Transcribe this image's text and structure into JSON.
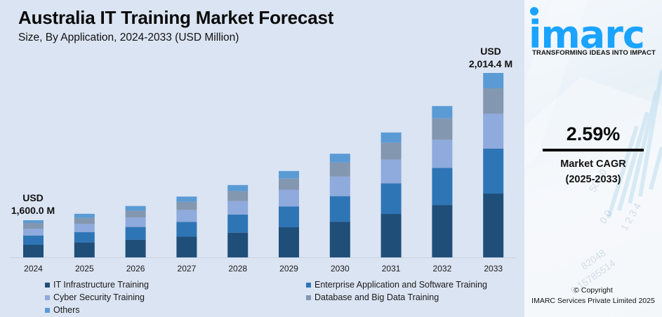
{
  "header": {
    "title": "Australia IT Training Market Forecast",
    "subtitle": "Size, By Application, 2024-2033 (USD Million)"
  },
  "annotations": {
    "start_currency": "USD",
    "start_value": "1,600.0 M",
    "end_currency": "USD",
    "end_value": "2,014.4 M"
  },
  "chart_data": {
    "type": "bar",
    "stacked": true,
    "title": "Australia IT Training Market Forecast",
    "subtitle": "Size, By Application, 2024-2033 (USD Million)",
    "xlabel": "",
    "ylabel": "USD Million",
    "y_axis_visible": false,
    "grid": false,
    "legend_position": "bottom",
    "categories": [
      "2024",
      "2025",
      "2026",
      "2027",
      "2028",
      "2029",
      "2030",
      "2031",
      "2032",
      "2033"
    ],
    "totals": [
      1600.0,
      1641.4,
      1683.9,
      1727.5,
      1772.3,
      1818.2,
      1865.3,
      1913.6,
      1963.2,
      2014.4
    ],
    "series": [
      {
        "name": "IT Infrastructure Training",
        "color": "#1f4e79",
        "values": [
          543.4,
          564.2,
          576.1,
          588.5,
          607.2,
          634.3,
          642.0,
          665.6,
          678.3,
          697.0
        ]
      },
      {
        "name": "Enterprise Application and Software Training",
        "color": "#2e75b6",
        "values": [
          392.5,
          384.7,
          421.0,
          417.7,
          443.1,
          436.9,
          460.4,
          468.0,
          481.7,
          490.2
        ]
      },
      {
        "name": "Cyber Security Training",
        "color": "#8faadc",
        "values": [
          301.9,
          307.8,
          310.2,
          341.7,
          328.2,
          352.4,
          351.3,
          364.0,
          365.9,
          383.0
        ]
      },
      {
        "name": "Database and Big Data Training",
        "color": "#8497b0",
        "values": [
          241.5,
          230.8,
          221.6,
          227.8,
          246.2,
          239.6,
          254.4,
          260.0,
          276.6,
          275.7
        ]
      },
      {
        "name": "Others",
        "color": "#5b9bd5",
        "values": [
          120.7,
          153.9,
          155.0,
          151.8,
          147.6,
          155.0,
          157.2,
          156.0,
          160.6,
          168.5
        ]
      }
    ]
  },
  "legend": [
    {
      "label": "IT Infrastructure Training",
      "color": "#1f4e79"
    },
    {
      "label": "Enterprise Application and Software Training",
      "color": "#2e75b6"
    },
    {
      "label": "Cyber Security Training",
      "color": "#8faadc"
    },
    {
      "label": "Database and Big Data Training",
      "color": "#8497b0"
    },
    {
      "label": "Others",
      "color": "#5b9bd5"
    }
  ],
  "sidebar": {
    "brand": "imarc",
    "brand_color": "#1aa3ff",
    "tagline": "TRANSFORMING IDEAS INTO IMPACT",
    "cagr_value": "2.59%",
    "cagr_label": "Market CAGR",
    "cagr_period": "(2025-2033)",
    "copyright_line1": "© Copyright",
    "copyright_line2": "IMARC Services Private Limited 2025"
  }
}
